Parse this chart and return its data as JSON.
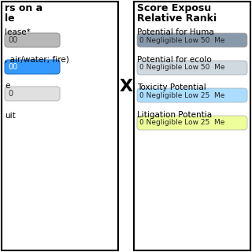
{
  "left_panel": {
    "title_lines": [
      "rs on a",
      "le"
    ],
    "items": [
      {
        "label": "lease*",
        "bar_text": "00",
        "bar_color": "#b8b8b8",
        "bar_gradient": true
      },
      {
        "label": ", air/water; fire)",
        "bar_text": "00",
        "bar_color": "#3399ff",
        "bar_gradient": false
      },
      {
        "label": "e",
        "bar_text": "0",
        "bar_color": "#e0e0e0",
        "bar_gradient": false
      },
      {
        "label": "uit",
        "bar_text": "",
        "bar_color": null,
        "bar_gradient": false
      }
    ]
  },
  "x_symbol": "X",
  "right_panel": {
    "title_lines": [
      "Score Exposu",
      "Relative Ranki"
    ],
    "items": [
      {
        "label": "Potential for Huma",
        "bar_text": "0 Negligible Low 50  Me",
        "bar_color": "#8899aa"
      },
      {
        "label": "Potential for ecolo",
        "bar_text": "0 Negligible Low 50  Me",
        "bar_color": "#d0d8e0"
      },
      {
        "label": "Toxicity Potential",
        "bar_text": "0 Negligible Low 25  Me",
        "bar_color": "#aaddff"
      },
      {
        "label": "Litigation Potentia",
        "bar_text": "0 Negligible Low 25  Me",
        "bar_color": "#eeff99"
      }
    ]
  },
  "bg_color": "#ffffff",
  "border_color": "#000000"
}
